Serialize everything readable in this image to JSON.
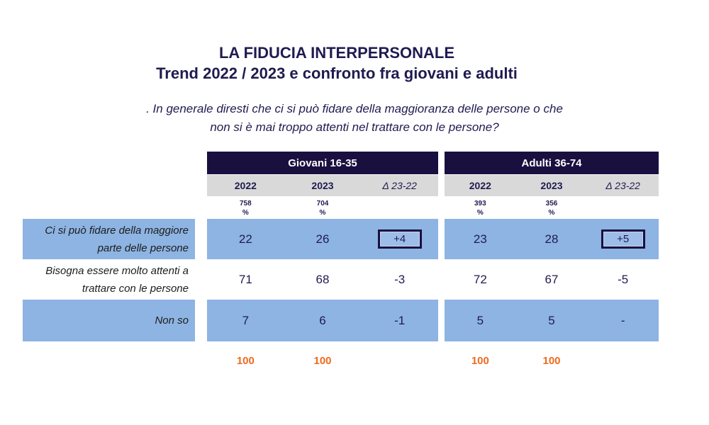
{
  "header": {
    "title_line1": "LA FIDUCIA INTERPERSONALE",
    "title_line2": "Trend 2022 / 2023 e confronto fra giovani e adulti",
    "question_line1": ". In generale diresti che ci si può fidare della maggioranza delle persone o che",
    "question_line2": "non si è mai troppo attenti nel trattare con le persone?"
  },
  "colors": {
    "header_navy": "#191040",
    "text_navy": "#1f1b50",
    "row_blue": "#8db4e2",
    "subheader_gray": "#d9d9d9",
    "total_orange": "#ee6a1f",
    "highlight_box_border": "#191040"
  },
  "chart_data": {
    "type": "table",
    "title": "LA FIDUCIA INTERPERSONALE",
    "subtitle": "Trend 2022 / 2023 e confronto fra giovani e adulti",
    "question": ". In generale diresti che ci si può fidare della maggioranza delle persone o che non si è mai troppo attenti nel trattare con le persone?",
    "row_labels": [
      "Ci si può fidare della maggiore\nparte delle persone",
      "Bisogna essere molto attenti a\ntrattare con le persone",
      "Non so"
    ],
    "base_unit": "%",
    "groups": [
      {
        "name": "Giovani 16-35",
        "columns": [
          "2022",
          "2023",
          "Δ 23-22"
        ],
        "base": [
          "758",
          "704"
        ],
        "values": [
          [
            "22",
            "26",
            "+4"
          ],
          [
            "71",
            "68",
            "-3"
          ],
          [
            "7",
            "6",
            "-1"
          ]
        ],
        "totals": [
          "100",
          "100"
        ],
        "highlighted_delta": "+4"
      },
      {
        "name": "Adulti 36-74",
        "columns": [
          "2022",
          "2023",
          "Δ 23-22"
        ],
        "base": [
          "393",
          "356"
        ],
        "values": [
          [
            "23",
            "28",
            "+5"
          ],
          [
            "72",
            "67",
            "-5"
          ],
          [
            "5",
            "5",
            "-"
          ]
        ],
        "totals": [
          "100",
          "100"
        ],
        "highlighted_delta": "+5"
      }
    ]
  }
}
